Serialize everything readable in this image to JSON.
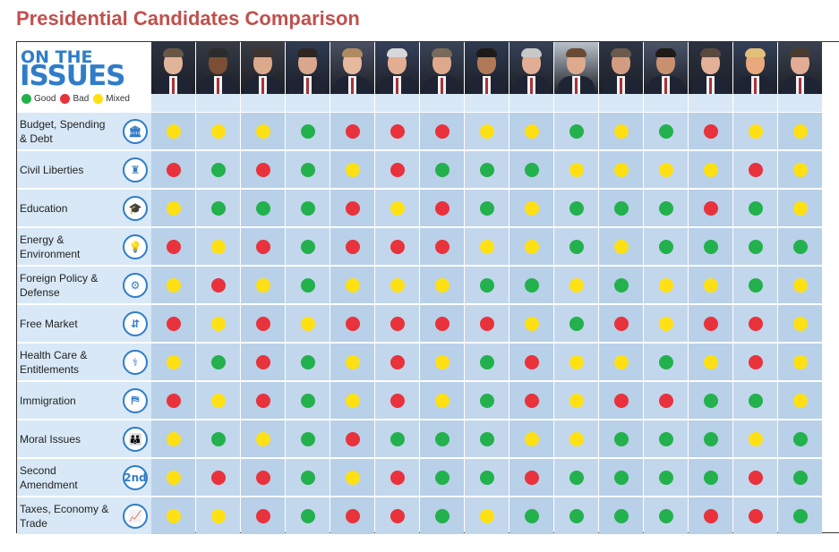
{
  "title": "Presidential Candidates Comparison",
  "logo": {
    "line1": "ON THE",
    "line2": "ISSUES"
  },
  "legend": [
    {
      "label": "Good",
      "color": "#22b14c"
    },
    {
      "label": "Bad",
      "color": "#e8323c"
    },
    {
      "label": "Mixed",
      "color": "#ffe014"
    }
  ],
  "colors": {
    "green": "#22b14c",
    "red": "#e8323c",
    "yellow": "#ffe014"
  },
  "candidates": [
    {
      "skin": "#e0b49a",
      "hair": "#6b5646",
      "bg": "#2d3340"
    },
    {
      "skin": "#7a4f36",
      "hair": "#2b2b2b",
      "bg": "#353a45"
    },
    {
      "skin": "#dba98c",
      "hair": "#3f3430",
      "bg": "#3a3d44"
    },
    {
      "skin": "#d9a88c",
      "hair": "#2e2420",
      "bg": "#2f3b52"
    },
    {
      "skin": "#e6b89e",
      "hair": "#b08b62",
      "bg": "#4a4f62"
    },
    {
      "skin": "#e2ad90",
      "hair": "#d8d8d8",
      "bg": "#35405a"
    },
    {
      "skin": "#dda88c",
      "hair": "#7a6a5c",
      "bg": "#3a4457"
    },
    {
      "skin": "#b07a58",
      "hair": "#1e1a18",
      "bg": "#2e3a4e"
    },
    {
      "skin": "#e0ae94",
      "hair": "#c8c8c8",
      "bg": "#364156"
    },
    {
      "skin": "#deaa8d",
      "hair": "#6a4a34",
      "bg": "#b9c2cc"
    },
    {
      "skin": "#d29c80",
      "hair": "#6b5a4c",
      "bg": "#2e3444"
    },
    {
      "skin": "#c99070",
      "hair": "#1f1a17",
      "bg": "#4a5468"
    },
    {
      "skin": "#e2b197",
      "hair": "#5a4a3e",
      "bg": "#2b3140"
    },
    {
      "skin": "#e8a97c",
      "hair": "#e2c07a",
      "bg": "#334058"
    },
    {
      "skin": "#e2ad94",
      "hair": "#4a3a30",
      "bg": "#3a4250"
    }
  ],
  "chart_data": {
    "type": "table",
    "legend": {
      "G": "Good",
      "R": "Bad",
      "Y": "Mixed"
    },
    "issues": [
      "Budget, Spending & Debt",
      "Civil Liberties",
      "Education",
      "Energy & Environment",
      "Foreign Policy & Defense",
      "Free Market",
      "Health Care & Entitlements",
      "Immigration",
      "Moral Issues",
      "Second Amendment",
      "Taxes, Economy & Trade"
    ],
    "ratings": [
      [
        "Y",
        "Y",
        "Y",
        "G",
        "R",
        "R",
        "R",
        "Y",
        "Y",
        "G",
        "Y",
        "G",
        "R",
        "Y",
        "Y"
      ],
      [
        "R",
        "G",
        "R",
        "G",
        "Y",
        "R",
        "G",
        "G",
        "G",
        "Y",
        "Y",
        "Y",
        "Y",
        "R",
        "Y"
      ],
      [
        "Y",
        "G",
        "G",
        "G",
        "R",
        "Y",
        "R",
        "G",
        "Y",
        "G",
        "G",
        "G",
        "R",
        "G",
        "Y"
      ],
      [
        "R",
        "Y",
        "R",
        "G",
        "R",
        "R",
        "R",
        "Y",
        "Y",
        "G",
        "Y",
        "G",
        "G",
        "G",
        "G"
      ],
      [
        "Y",
        "R",
        "Y",
        "G",
        "Y",
        "Y",
        "Y",
        "G",
        "G",
        "Y",
        "G",
        "Y",
        "Y",
        "G",
        "Y"
      ],
      [
        "R",
        "Y",
        "R",
        "Y",
        "R",
        "R",
        "R",
        "R",
        "Y",
        "G",
        "R",
        "Y",
        "R",
        "R",
        "Y"
      ],
      [
        "Y",
        "G",
        "R",
        "G",
        "Y",
        "R",
        "Y",
        "G",
        "R",
        "Y",
        "Y",
        "G",
        "Y",
        "R",
        "Y"
      ],
      [
        "R",
        "Y",
        "R",
        "G",
        "Y",
        "R",
        "Y",
        "G",
        "R",
        "Y",
        "R",
        "R",
        "G",
        "G",
        "Y"
      ],
      [
        "Y",
        "G",
        "Y",
        "G",
        "R",
        "G",
        "G",
        "G",
        "Y",
        "Y",
        "G",
        "G",
        "G",
        "Y",
        "G"
      ],
      [
        "Y",
        "R",
        "R",
        "G",
        "Y",
        "R",
        "G",
        "G",
        "R",
        "G",
        "G",
        "G",
        "G",
        "R",
        "G"
      ],
      [
        "Y",
        "Y",
        "R",
        "G",
        "R",
        "R",
        "G",
        "Y",
        "G",
        "G",
        "G",
        "G",
        "R",
        "R",
        "G"
      ]
    ]
  },
  "issue_icons": [
    "building-icon",
    "torch-icon",
    "mortarboard-icon",
    "lightbulb-icon",
    "globe-icon",
    "supply-demand-icon",
    "caduceus-icon",
    "border-crossing-icon",
    "family-icon",
    "second-amendment-icon",
    "rising-chart-icon"
  ],
  "issue_icon_glyphs": [
    "🏛",
    "♜",
    "🎓",
    "💡",
    "⚙",
    "⇵",
    "⚕",
    "⛿",
    "👪",
    "2nd",
    "📈"
  ]
}
